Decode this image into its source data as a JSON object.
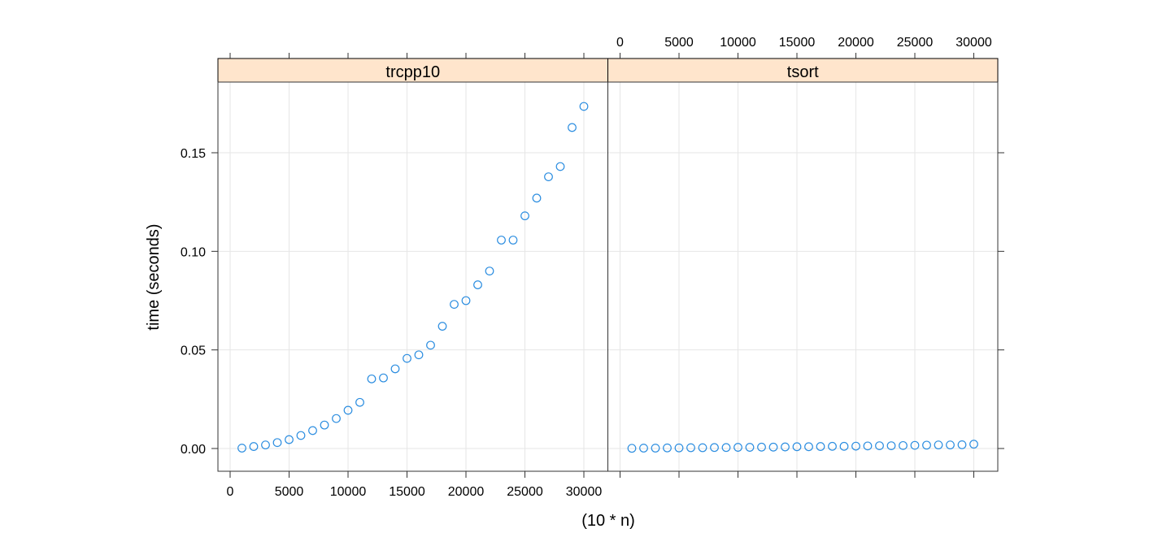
{
  "chart_data": {
    "type": "scatter",
    "title": "",
    "xlabel": "(10 * n)",
    "ylabel": "time (seconds)",
    "xlim": [
      -1000,
      32000
    ],
    "ylim": [
      -0.0095,
      0.186
    ],
    "x_ticks": [
      0,
      5000,
      10000,
      15000,
      20000,
      25000,
      30000
    ],
    "y_ticks": [
      0.0,
      0.05,
      0.1,
      0.15
    ],
    "y_tick_labels": [
      "0.00",
      "0.05",
      "0.10",
      "0.15"
    ],
    "grid": true,
    "point_color": "#2b8de0",
    "strip_color": "#ffe5cc",
    "panels": [
      {
        "name": "trcpp10",
        "x": [
          1000,
          2000,
          3000,
          4000,
          5000,
          6000,
          7000,
          8000,
          9000,
          10000,
          11000,
          12000,
          13000,
          14000,
          15000,
          16000,
          17000,
          18000,
          19000,
          20000,
          21000,
          22000,
          23000,
          24000,
          25000,
          26000,
          27000,
          28000,
          29000,
          30000
        ],
        "y": [
          0.0002,
          0.001,
          0.0018,
          0.003,
          0.0045,
          0.0066,
          0.0091,
          0.0119,
          0.0152,
          0.0194,
          0.0234,
          0.0353,
          0.0358,
          0.0404,
          0.0457,
          0.0475,
          0.0524,
          0.062,
          0.0731,
          0.075,
          0.083,
          0.09,
          0.1057,
          0.1057,
          0.118,
          0.127,
          0.1378,
          0.143,
          0.1628,
          0.1735
        ]
      },
      {
        "name": "tsort",
        "x": [
          1000,
          2000,
          3000,
          4000,
          5000,
          6000,
          7000,
          8000,
          9000,
          10000,
          11000,
          12000,
          13000,
          14000,
          15000,
          16000,
          17000,
          18000,
          19000,
          20000,
          21000,
          22000,
          23000,
          24000,
          25000,
          26000,
          27000,
          28000,
          29000,
          30000
        ],
        "y": [
          0.0001,
          0.0002,
          0.0002,
          0.0003,
          0.0003,
          0.0004,
          0.0004,
          0.0005,
          0.0005,
          0.0006,
          0.0006,
          0.0007,
          0.0007,
          0.0008,
          0.0009,
          0.0009,
          0.001,
          0.0011,
          0.0011,
          0.0012,
          0.0013,
          0.0014,
          0.0014,
          0.0015,
          0.0016,
          0.0017,
          0.0018,
          0.0018,
          0.0019,
          0.0022
        ]
      }
    ]
  }
}
